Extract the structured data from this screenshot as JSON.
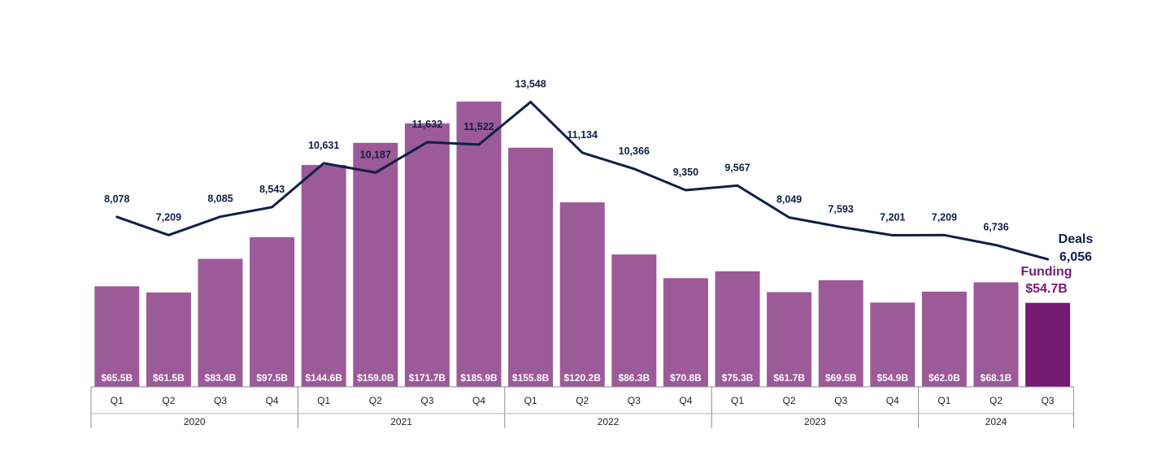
{
  "chart_data": {
    "type": "bar",
    "categories": [
      "Q1",
      "Q2",
      "Q3",
      "Q4",
      "Q1",
      "Q2",
      "Q3",
      "Q4",
      "Q1",
      "Q2",
      "Q3",
      "Q4",
      "Q1",
      "Q2",
      "Q3",
      "Q4",
      "Q1",
      "Q2",
      "Q3"
    ],
    "years": [
      {
        "label": "2020",
        "quarters": 4
      },
      {
        "label": "2021",
        "quarters": 4
      },
      {
        "label": "2022",
        "quarters": 4
      },
      {
        "label": "2023",
        "quarters": 4
      },
      {
        "label": "2024",
        "quarters": 3
      }
    ],
    "series": [
      {
        "type": "bar",
        "values": [
          65.5,
          61.5,
          83.4,
          97.5,
          144.6,
          159.0,
          171.7,
          185.9,
          155.8,
          120.2,
          86.3,
          70.8,
          75.3,
          61.7,
          69.5,
          54.9,
          62.0,
          68.1,
          54.7
        ],
        "labels": [
          "$65.5B",
          "$61.5B",
          "$83.4B",
          "$97.5B",
          "$144.6B",
          "$159.0B",
          "$171.7B",
          "$185.9B",
          "$155.8B",
          "$120.2B",
          "$86.3B",
          "$70.8B",
          "$75.3B",
          "$61.7B",
          "$69.5B",
          "$54.9B",
          "$62.0B",
          "$68.1B",
          ""
        ],
        "color": "#9c5a98",
        "highlight_color": "#751a75"
      },
      {
        "type": "line",
        "values": [
          8078,
          7209,
          8085,
          8543,
          10631,
          10187,
          11632,
          11522,
          13548,
          11134,
          10366,
          9350,
          9567,
          8049,
          7593,
          7201,
          7209,
          6736,
          6056
        ],
        "labels": [
          "8,078",
          "7,209",
          "8,085",
          "8,543",
          "10,631",
          "10,187",
          "11,632",
          "11,522",
          "13,548",
          "11,134",
          "10,366",
          "9,350",
          "9,567",
          "8,049",
          "7,593",
          "7,201",
          "7,209",
          "6,736",
          ""
        ],
        "color": "#0f1f45"
      }
    ],
    "end_labels": {
      "deals_name": "Deals",
      "deals_value": "6,056",
      "funding_name": "Funding",
      "funding_value": "$54.7B"
    },
    "grid": false,
    "legend": "none"
  }
}
